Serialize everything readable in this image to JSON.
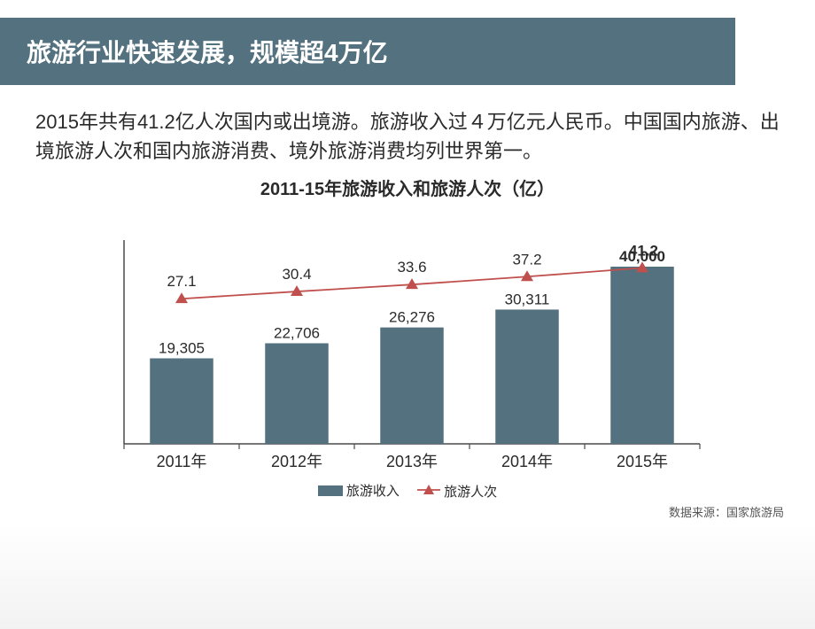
{
  "header": {
    "title": "旅游行业快速发展，规模超4万亿"
  },
  "description": "2015年共有41.2亿人次国内或出境游。旅游收入过４万亿元人民币。中国国内旅游、出境旅游人次和国内旅游消费、境外旅游消费均列世界第一。",
  "chart": {
    "title": "2011-15年旅游收入和旅游人次（亿）",
    "type": "bar+line",
    "categories": [
      "2011年",
      "2012年",
      "2013年",
      "2014年",
      "2015年"
    ],
    "bar_series": {
      "name": "旅游收入",
      "values": [
        19305,
        22706,
        26276,
        30311,
        40000
      ],
      "labels": [
        "19,305",
        "22,706",
        "26,276",
        "30,311",
        "40,000"
      ],
      "color": "#53717f",
      "last_label_bold": true
    },
    "line_series": {
      "name": "旅游人次",
      "values": [
        27.1,
        30.4,
        33.6,
        37.2,
        41.2
      ],
      "labels": [
        "27.1",
        "30.4",
        "33.6",
        "37.2",
        "41.2"
      ],
      "color": "#c0504d",
      "marker": "triangle",
      "last_label_bold": true
    },
    "bar_ymax": 45000,
    "line_ymin": 20,
    "line_ymax": 60,
    "plot_background": "#ffffff",
    "axis_color": "#4a4a4a",
    "label_fontsize": 17,
    "category_fontsize": 18,
    "category_color": "#2a2a2a",
    "bar_width_ratio": 0.55
  },
  "legend": {
    "bar_label": "旅游收入",
    "line_label": "旅游人次"
  },
  "source": "数据来源：国家旅游局"
}
